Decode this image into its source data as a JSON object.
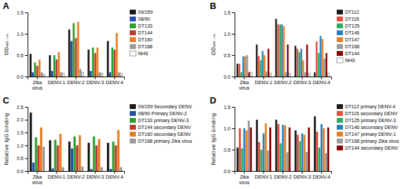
{
  "chart_data": [
    {
      "type": "bar",
      "title": "A",
      "ylabel": "OD₄₀₅ ₙₘ",
      "categories": [
        "Zika\nvirus",
        "DENV-1",
        "DENV-2",
        "DENV-3",
        "DENV-4"
      ],
      "series": [
        {
          "name": "09/159",
          "color": "#1a1a1a",
          "values": [
            0.53,
            0.5,
            1.1,
            0.63,
            0.83
          ]
        },
        {
          "name": "08/90",
          "color": "#1f4faa",
          "values": [
            0.1,
            0.13,
            0.83,
            0.13,
            0.1
          ]
        },
        {
          "name": "DT133",
          "color": "#2ca02c",
          "values": [
            0.33,
            0.5,
            1.25,
            0.68,
            0.68
          ]
        },
        {
          "name": "DT144",
          "color": "#c0392b",
          "values": [
            0.25,
            0.4,
            0.9,
            0.55,
            0.63
          ]
        },
        {
          "name": "DT160",
          "color": "#e67e22",
          "values": [
            0.4,
            0.57,
            1.28,
            0.68,
            1.02
          ]
        },
        {
          "name": "DT168",
          "color": "#999999",
          "values": [
            0.1,
            0.1,
            0.18,
            0.1,
            0.1
          ]
        },
        {
          "name": "NHS",
          "color": "#ffffff",
          "values": [
            0.05,
            0.08,
            0.1,
            0.08,
            0.08
          ]
        }
      ],
      "ylim": [
        0,
        1.5
      ],
      "yticks": [
        {
          "value": 0,
          "label": "0.0"
        },
        0.5,
        {
          "value": 1.0,
          "label": "1.0"
        },
        1.5
      ],
      "grid": false,
      "legend": "right"
    },
    {
      "type": "bar",
      "title": "B",
      "ylabel": "OD₄₀₅ ₙₘ",
      "categories": [
        "Zika\nvirus",
        "DENV-1",
        "DENV-2",
        "DENV-3",
        "DENV-4"
      ],
      "series": [
        {
          "name": "DT112",
          "color": "#1a1a1a",
          "values": [
            0.3,
            0.75,
            1.35,
            0.72,
            0.1
          ]
        },
        {
          "name": "DT115",
          "color": "#e74c3c",
          "values": [
            0.3,
            0.48,
            1.22,
            0.65,
            0.82
          ]
        },
        {
          "name": "DT125",
          "color": "#27ae60",
          "values": [
            0.1,
            0.38,
            1.22,
            0.57,
            0.55
          ]
        },
        {
          "name": "DT146",
          "color": "#2980b9",
          "values": [
            0.47,
            0.6,
            1.22,
            0.65,
            0.95
          ]
        },
        {
          "name": "DT147",
          "color": "#e67e22",
          "values": [
            0.48,
            0.5,
            1.18,
            0.38,
            0.88
          ]
        },
        {
          "name": "DT168",
          "color": "#999999",
          "values": [
            0.5,
            0.12,
            0.1,
            0.1,
            0.42
          ]
        },
        {
          "name": "DT144",
          "color": "#8B0000",
          "values": [
            0.1,
            0.65,
            0.75,
            0.75,
            0.55
          ]
        },
        {
          "name": "NHS",
          "color": "#ffffff",
          "values": [
            0.1,
            0.08,
            0.08,
            0.08,
            0.08
          ]
        }
      ],
      "ylim": [
        0,
        1.5
      ],
      "yticks": [
        {
          "value": 0,
          "label": "0.0"
        },
        0.5,
        {
          "value": 1.0,
          "label": "1.0"
        },
        1.5
      ],
      "grid": false,
      "legend": "right"
    },
    {
      "type": "bar",
      "title": "C",
      "ylabel": "Relative IgG binding",
      "categories": [
        "Zika\nvirus",
        "DENV-1",
        "DENV-2",
        "DENV-3",
        "DENV-4"
      ],
      "series": [
        {
          "name": "09/159 Secondary DENV",
          "color": "#1a1a1a",
          "values": [
            2.28,
            1.2,
            1.15,
            1.1,
            1.1
          ]
        },
        {
          "name": "08/90 Primary DENV-2",
          "color": "#1f4faa",
          "values": [
            0.33,
            0.1,
            0.88,
            0.08,
            0.08
          ]
        },
        {
          "name": "DT133 primary DENV-3",
          "color": "#2ca02c",
          "values": [
            1.32,
            1.22,
            1.35,
            1.35,
            1.15
          ]
        },
        {
          "name": "DT144 secondary DENV",
          "color": "#c0392b",
          "values": [
            1.0,
            1.0,
            1.0,
            1.0,
            1.0
          ]
        },
        {
          "name": "DT160 secondary DENV",
          "color": "#e67e22",
          "values": [
            1.7,
            1.45,
            1.4,
            1.25,
            1.6
          ]
        },
        {
          "name": "DT168 primary Zika virus",
          "color": "#999999",
          "values": [
            0.95,
            0.15,
            0.18,
            0.15,
            0.15
          ]
        }
      ],
      "ylim": [
        0,
        2.5
      ],
      "yticks": [
        {
          "value": 0,
          "label": "0.0"
        },
        0.5,
        {
          "value": 1.0,
          "label": "1.0"
        },
        1.5,
        {
          "value": 2.0,
          "label": "2.0"
        },
        2.5
      ],
      "grid": false,
      "legend": "right"
    },
    {
      "type": "bar",
      "title": "D",
      "ylabel": "Relative IgG binding",
      "categories": [
        "Zika\nvirus",
        "DENV-1",
        "DENV-2",
        "DENV-3",
        "DENV-4"
      ],
      "series": [
        {
          "name": "DT112 primary DENV-4",
          "color": "#1a1a1a",
          "values": [
            0.55,
            1.2,
            1.2,
            0.95,
            1.28
          ]
        },
        {
          "name": "DT115 secondary DENV",
          "color": "#e74c3c",
          "values": [
            1.0,
            0.68,
            1.1,
            0.85,
            0.92
          ]
        },
        {
          "name": "DT125 primary DENV-3",
          "color": "#27ae60",
          "values": [
            0.53,
            0.5,
            0.65,
            0.7,
            0.55
          ]
        },
        {
          "name": "DT146 secondary DENV",
          "color": "#2980b9",
          "values": [
            1.0,
            0.88,
            1.08,
            0.88,
            1.1
          ]
        },
        {
          "name": "DT147 primary DENV-1",
          "color": "#e67e22",
          "values": [
            0.95,
            1.12,
            1.07,
            0.85,
            1.0
          ]
        },
        {
          "name": "DT168 primary Zika virus",
          "color": "#999999",
          "values": [
            1.18,
            0.48,
            0.44,
            0.45,
            0.42
          ]
        },
        {
          "name": "DT144 secondary DENV",
          "color": "#8B0000",
          "values": [
            1.02,
            1.02,
            1.02,
            1.02,
            1.02
          ]
        }
      ],
      "ylim": [
        0,
        1.5
      ],
      "yticks": [
        {
          "value": 0,
          "label": "0.0"
        },
        0.5,
        {
          "value": 1.0,
          "label": "1.0"
        },
        1.5
      ],
      "grid": false,
      "legend": "right"
    }
  ]
}
